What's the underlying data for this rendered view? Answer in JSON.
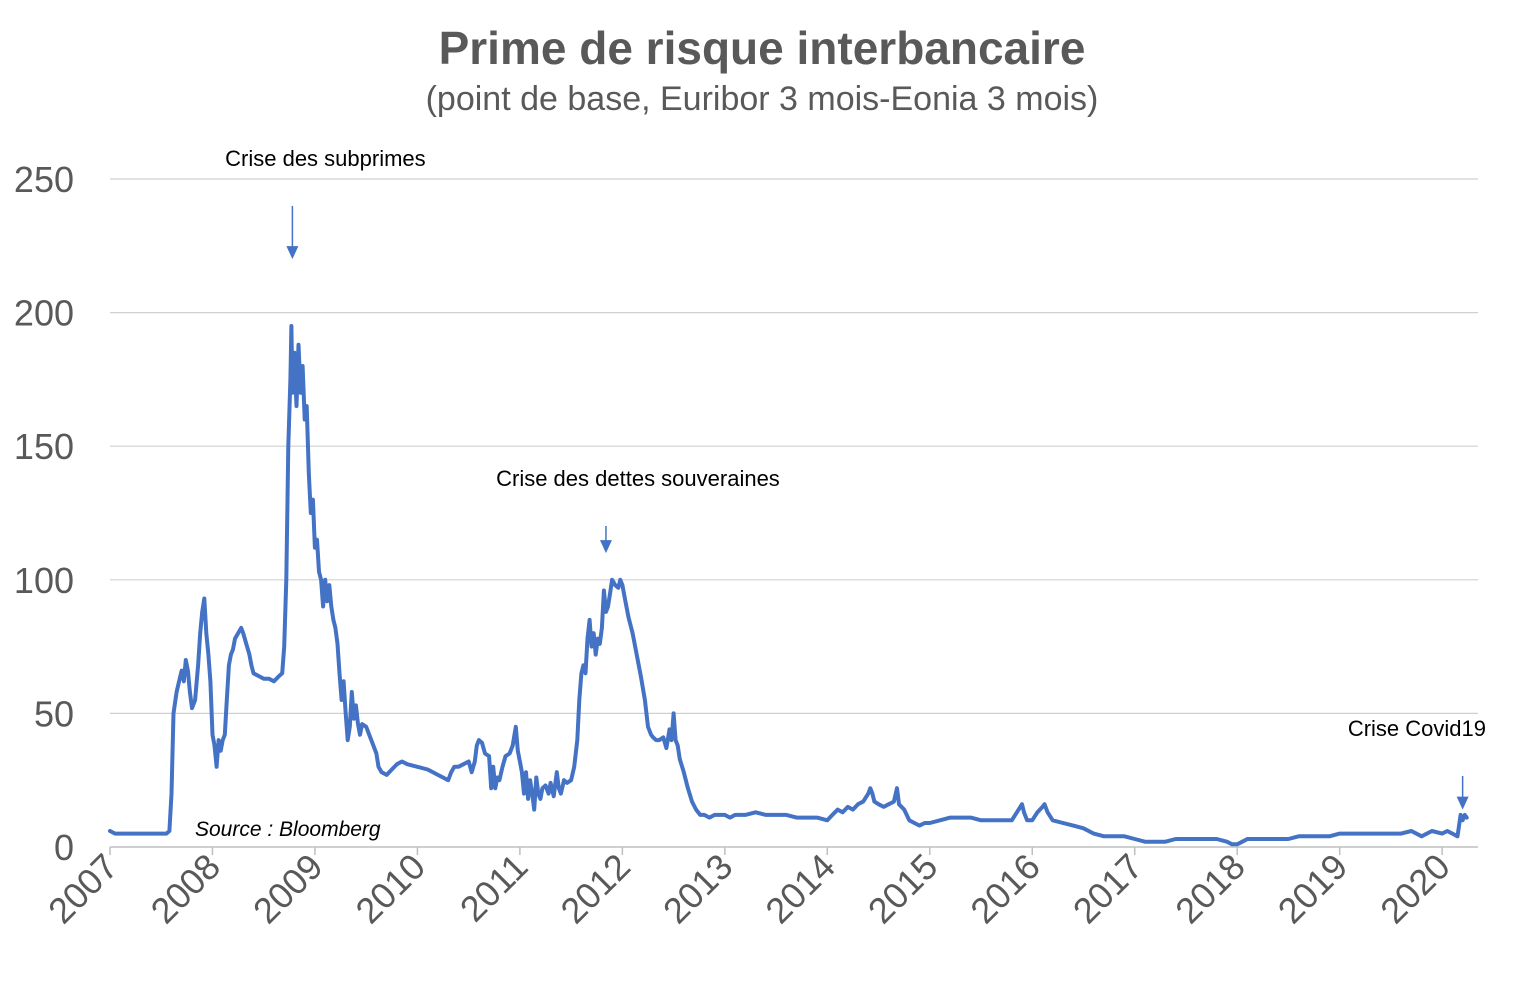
{
  "chart_data": {
    "type": "line",
    "title": "Prime de risque interbancaire",
    "subtitle": "(point de base, Euribor 3 mois-Eonia 3 mois)",
    "source": "Source : Bloomberg",
    "xlabel": "",
    "ylabel": "",
    "xlim": [
      2007,
      2020.35
    ],
    "ylim": [
      0,
      250
    ],
    "yticks": [
      "0",
      "50",
      "100",
      "150",
      "200",
      "250"
    ],
    "xticks": [
      "2007",
      "2008",
      "2009",
      "2010",
      "2011",
      "2012",
      "2013",
      "2014",
      "2015",
      "2016",
      "2017",
      "2018",
      "2019",
      "2020"
    ],
    "grid": true,
    "legend": "none",
    "line_color": "#4472c4",
    "annotations": [
      {
        "text": "Crise des subprimes",
        "x": 2008.78,
        "y": 220
      },
      {
        "text": "Crise des dettes souveraines",
        "x": 2011.84,
        "y": 110
      },
      {
        "text": "Crise Covid19",
        "x": 2020.2,
        "y": 14
      }
    ],
    "series": [
      {
        "values": [
          [
            2007.0,
            6
          ],
          [
            2007.05,
            5
          ],
          [
            2007.1,
            5
          ],
          [
            2007.2,
            5
          ],
          [
            2007.3,
            5
          ],
          [
            2007.4,
            5
          ],
          [
            2007.5,
            5
          ],
          [
            2007.55,
            5
          ],
          [
            2007.58,
            6
          ],
          [
            2007.6,
            20
          ],
          [
            2007.62,
            50
          ],
          [
            2007.65,
            58
          ],
          [
            2007.68,
            63
          ],
          [
            2007.7,
            66
          ],
          [
            2007.72,
            62
          ],
          [
            2007.74,
            70
          ],
          [
            2007.76,
            66
          ],
          [
            2007.78,
            58
          ],
          [
            2007.8,
            52
          ],
          [
            2007.83,
            55
          ],
          [
            2007.86,
            68
          ],
          [
            2007.88,
            80
          ],
          [
            2007.9,
            88
          ],
          [
            2007.92,
            93
          ],
          [
            2007.94,
            80
          ],
          [
            2007.96,
            72
          ],
          [
            2007.98,
            62
          ],
          [
            2008.0,
            42
          ],
          [
            2008.02,
            38
          ],
          [
            2008.04,
            30
          ],
          [
            2008.06,
            40
          ],
          [
            2008.08,
            36
          ],
          [
            2008.1,
            40
          ],
          [
            2008.12,
            42
          ],
          [
            2008.14,
            55
          ],
          [
            2008.16,
            68
          ],
          [
            2008.18,
            72
          ],
          [
            2008.2,
            74
          ],
          [
            2008.22,
            78
          ],
          [
            2008.25,
            80
          ],
          [
            2008.28,
            82
          ],
          [
            2008.3,
            80
          ],
          [
            2008.33,
            76
          ],
          [
            2008.36,
            72
          ],
          [
            2008.38,
            68
          ],
          [
            2008.4,
            65
          ],
          [
            2008.45,
            64
          ],
          [
            2008.5,
            63
          ],
          [
            2008.55,
            63
          ],
          [
            2008.6,
            62
          ],
          [
            2008.65,
            64
          ],
          [
            2008.68,
            65
          ],
          [
            2008.7,
            75
          ],
          [
            2008.72,
            100
          ],
          [
            2008.74,
            150
          ],
          [
            2008.76,
            175
          ],
          [
            2008.77,
            195
          ],
          [
            2008.78,
            170
          ],
          [
            2008.8,
            185
          ],
          [
            2008.82,
            165
          ],
          [
            2008.84,
            188
          ],
          [
            2008.86,
            170
          ],
          [
            2008.88,
            180
          ],
          [
            2008.9,
            160
          ],
          [
            2008.92,
            165
          ],
          [
            2008.94,
            140
          ],
          [
            2008.96,
            125
          ],
          [
            2008.98,
            130
          ],
          [
            2009.0,
            112
          ],
          [
            2009.02,
            115
          ],
          [
            2009.04,
            103
          ],
          [
            2009.06,
            100
          ],
          [
            2009.08,
            90
          ],
          [
            2009.1,
            100
          ],
          [
            2009.12,
            92
          ],
          [
            2009.14,
            98
          ],
          [
            2009.16,
            90
          ],
          [
            2009.18,
            85
          ],
          [
            2009.2,
            82
          ],
          [
            2009.22,
            76
          ],
          [
            2009.24,
            65
          ],
          [
            2009.26,
            55
          ],
          [
            2009.28,
            62
          ],
          [
            2009.3,
            50
          ],
          [
            2009.32,
            40
          ],
          [
            2009.34,
            45
          ],
          [
            2009.36,
            58
          ],
          [
            2009.38,
            48
          ],
          [
            2009.4,
            53
          ],
          [
            2009.42,
            46
          ],
          [
            2009.44,
            42
          ],
          [
            2009.46,
            46
          ],
          [
            2009.5,
            45
          ],
          [
            2009.55,
            40
          ],
          [
            2009.6,
            35
          ],
          [
            2009.62,
            30
          ],
          [
            2009.65,
            28
          ],
          [
            2009.7,
            27
          ],
          [
            2009.75,
            29
          ],
          [
            2009.8,
            31
          ],
          [
            2009.85,
            32
          ],
          [
            2009.9,
            31
          ],
          [
            2010.0,
            30
          ],
          [
            2010.1,
            29
          ],
          [
            2010.2,
            27
          ],
          [
            2010.25,
            26
          ],
          [
            2010.3,
            25
          ],
          [
            2010.33,
            28
          ],
          [
            2010.36,
            30
          ],
          [
            2010.4,
            30
          ],
          [
            2010.45,
            31
          ],
          [
            2010.5,
            32
          ],
          [
            2010.53,
            28
          ],
          [
            2010.56,
            32
          ],
          [
            2010.58,
            38
          ],
          [
            2010.6,
            40
          ],
          [
            2010.63,
            39
          ],
          [
            2010.66,
            35
          ],
          [
            2010.7,
            34
          ],
          [
            2010.72,
            22
          ],
          [
            2010.74,
            30
          ],
          [
            2010.76,
            22
          ],
          [
            2010.78,
            26
          ],
          [
            2010.8,
            25
          ],
          [
            2010.83,
            30
          ],
          [
            2010.86,
            34
          ],
          [
            2010.9,
            35
          ],
          [
            2010.93,
            38
          ],
          [
            2010.96,
            45
          ],
          [
            2010.98,
            36
          ],
          [
            2011.0,
            32
          ],
          [
            2011.02,
            28
          ],
          [
            2011.04,
            20
          ],
          [
            2011.06,
            28
          ],
          [
            2011.08,
            18
          ],
          [
            2011.1,
            25
          ],
          [
            2011.12,
            20
          ],
          [
            2011.14,
            14
          ],
          [
            2011.16,
            26
          ],
          [
            2011.18,
            20
          ],
          [
            2011.2,
            18
          ],
          [
            2011.22,
            22
          ],
          [
            2011.25,
            23
          ],
          [
            2011.28,
            20
          ],
          [
            2011.3,
            24
          ],
          [
            2011.33,
            19
          ],
          [
            2011.36,
            28
          ],
          [
            2011.38,
            22
          ],
          [
            2011.4,
            20
          ],
          [
            2011.43,
            25
          ],
          [
            2011.46,
            24
          ],
          [
            2011.5,
            25
          ],
          [
            2011.53,
            30
          ],
          [
            2011.56,
            40
          ],
          [
            2011.58,
            55
          ],
          [
            2011.6,
            65
          ],
          [
            2011.62,
            68
          ],
          [
            2011.64,
            65
          ],
          [
            2011.66,
            78
          ],
          [
            2011.68,
            85
          ],
          [
            2011.7,
            75
          ],
          [
            2011.72,
            80
          ],
          [
            2011.74,
            72
          ],
          [
            2011.76,
            78
          ],
          [
            2011.78,
            76
          ],
          [
            2011.8,
            82
          ],
          [
            2011.82,
            96
          ],
          [
            2011.84,
            88
          ],
          [
            2011.86,
            90
          ],
          [
            2011.88,
            95
          ],
          [
            2011.9,
            100
          ],
          [
            2011.93,
            98
          ],
          [
            2011.96,
            97
          ],
          [
            2011.98,
            100
          ],
          [
            2012.0,
            98
          ],
          [
            2012.03,
            92
          ],
          [
            2012.06,
            86
          ],
          [
            2012.1,
            80
          ],
          [
            2012.14,
            72
          ],
          [
            2012.18,
            64
          ],
          [
            2012.22,
            55
          ],
          [
            2012.25,
            45
          ],
          [
            2012.28,
            42
          ],
          [
            2012.3,
            41
          ],
          [
            2012.33,
            40
          ],
          [
            2012.36,
            40
          ],
          [
            2012.4,
            41
          ],
          [
            2012.43,
            37
          ],
          [
            2012.46,
            44
          ],
          [
            2012.48,
            40
          ],
          [
            2012.5,
            50
          ],
          [
            2012.52,
            40
          ],
          [
            2012.54,
            38
          ],
          [
            2012.56,
            33
          ],
          [
            2012.6,
            28
          ],
          [
            2012.64,
            22
          ],
          [
            2012.68,
            17
          ],
          [
            2012.72,
            14
          ],
          [
            2012.76,
            12
          ],
          [
            2012.8,
            12
          ],
          [
            2012.85,
            11
          ],
          [
            2012.9,
            12
          ],
          [
            2013.0,
            12
          ],
          [
            2013.05,
            11
          ],
          [
            2013.1,
            12
          ],
          [
            2013.2,
            12
          ],
          [
            2013.3,
            13
          ],
          [
            2013.4,
            12
          ],
          [
            2013.5,
            12
          ],
          [
            2013.6,
            12
          ],
          [
            2013.7,
            11
          ],
          [
            2013.8,
            11
          ],
          [
            2013.9,
            11
          ],
          [
            2014.0,
            10
          ],
          [
            2014.05,
            12
          ],
          [
            2014.1,
            14
          ],
          [
            2014.15,
            13
          ],
          [
            2014.2,
            15
          ],
          [
            2014.25,
            14
          ],
          [
            2014.3,
            16
          ],
          [
            2014.35,
            17
          ],
          [
            2014.4,
            20
          ],
          [
            2014.42,
            22
          ],
          [
            2014.44,
            20
          ],
          [
            2014.46,
            17
          ],
          [
            2014.5,
            16
          ],
          [
            2014.55,
            15
          ],
          [
            2014.6,
            16
          ],
          [
            2014.65,
            17
          ],
          [
            2014.68,
            22
          ],
          [
            2014.7,
            16
          ],
          [
            2014.75,
            14
          ],
          [
            2014.8,
            10
          ],
          [
            2014.85,
            9
          ],
          [
            2014.9,
            8
          ],
          [
            2014.95,
            9
          ],
          [
            2015.0,
            9
          ],
          [
            2015.1,
            10
          ],
          [
            2015.2,
            11
          ],
          [
            2015.3,
            11
          ],
          [
            2015.4,
            11
          ],
          [
            2015.5,
            10
          ],
          [
            2015.6,
            10
          ],
          [
            2015.7,
            10
          ],
          [
            2015.8,
            10
          ],
          [
            2015.85,
            13
          ],
          [
            2015.9,
            16
          ],
          [
            2015.92,
            13
          ],
          [
            2015.95,
            10
          ],
          [
            2016.0,
            10
          ],
          [
            2016.05,
            13
          ],
          [
            2016.1,
            15
          ],
          [
            2016.12,
            16
          ],
          [
            2016.15,
            13
          ],
          [
            2016.2,
            10
          ],
          [
            2016.3,
            9
          ],
          [
            2016.4,
            8
          ],
          [
            2016.5,
            7
          ],
          [
            2016.6,
            5
          ],
          [
            2016.7,
            4
          ],
          [
            2016.8,
            4
          ],
          [
            2016.9,
            4
          ],
          [
            2017.0,
            3
          ],
          [
            2017.1,
            2
          ],
          [
            2017.2,
            2
          ],
          [
            2017.3,
            2
          ],
          [
            2017.4,
            3
          ],
          [
            2017.5,
            3
          ],
          [
            2017.6,
            3
          ],
          [
            2017.7,
            3
          ],
          [
            2017.8,
            3
          ],
          [
            2017.9,
            2
          ],
          [
            2017.95,
            1
          ],
          [
            2018.0,
            1
          ],
          [
            2018.05,
            2
          ],
          [
            2018.1,
            3
          ],
          [
            2018.2,
            3
          ],
          [
            2018.3,
            3
          ],
          [
            2018.4,
            3
          ],
          [
            2018.5,
            3
          ],
          [
            2018.6,
            4
          ],
          [
            2018.7,
            4
          ],
          [
            2018.8,
            4
          ],
          [
            2018.9,
            4
          ],
          [
            2019.0,
            5
          ],
          [
            2019.1,
            5
          ],
          [
            2019.2,
            5
          ],
          [
            2019.3,
            5
          ],
          [
            2019.4,
            5
          ],
          [
            2019.5,
            5
          ],
          [
            2019.6,
            5
          ],
          [
            2019.7,
            6
          ],
          [
            2019.8,
            4
          ],
          [
            2019.9,
            6
          ],
          [
            2020.0,
            5
          ],
          [
            2020.05,
            6
          ],
          [
            2020.1,
            5
          ],
          [
            2020.15,
            4
          ],
          [
            2020.18,
            12
          ],
          [
            2020.2,
            10
          ],
          [
            2020.22,
            12
          ],
          [
            2020.24,
            11
          ]
        ]
      }
    ]
  }
}
